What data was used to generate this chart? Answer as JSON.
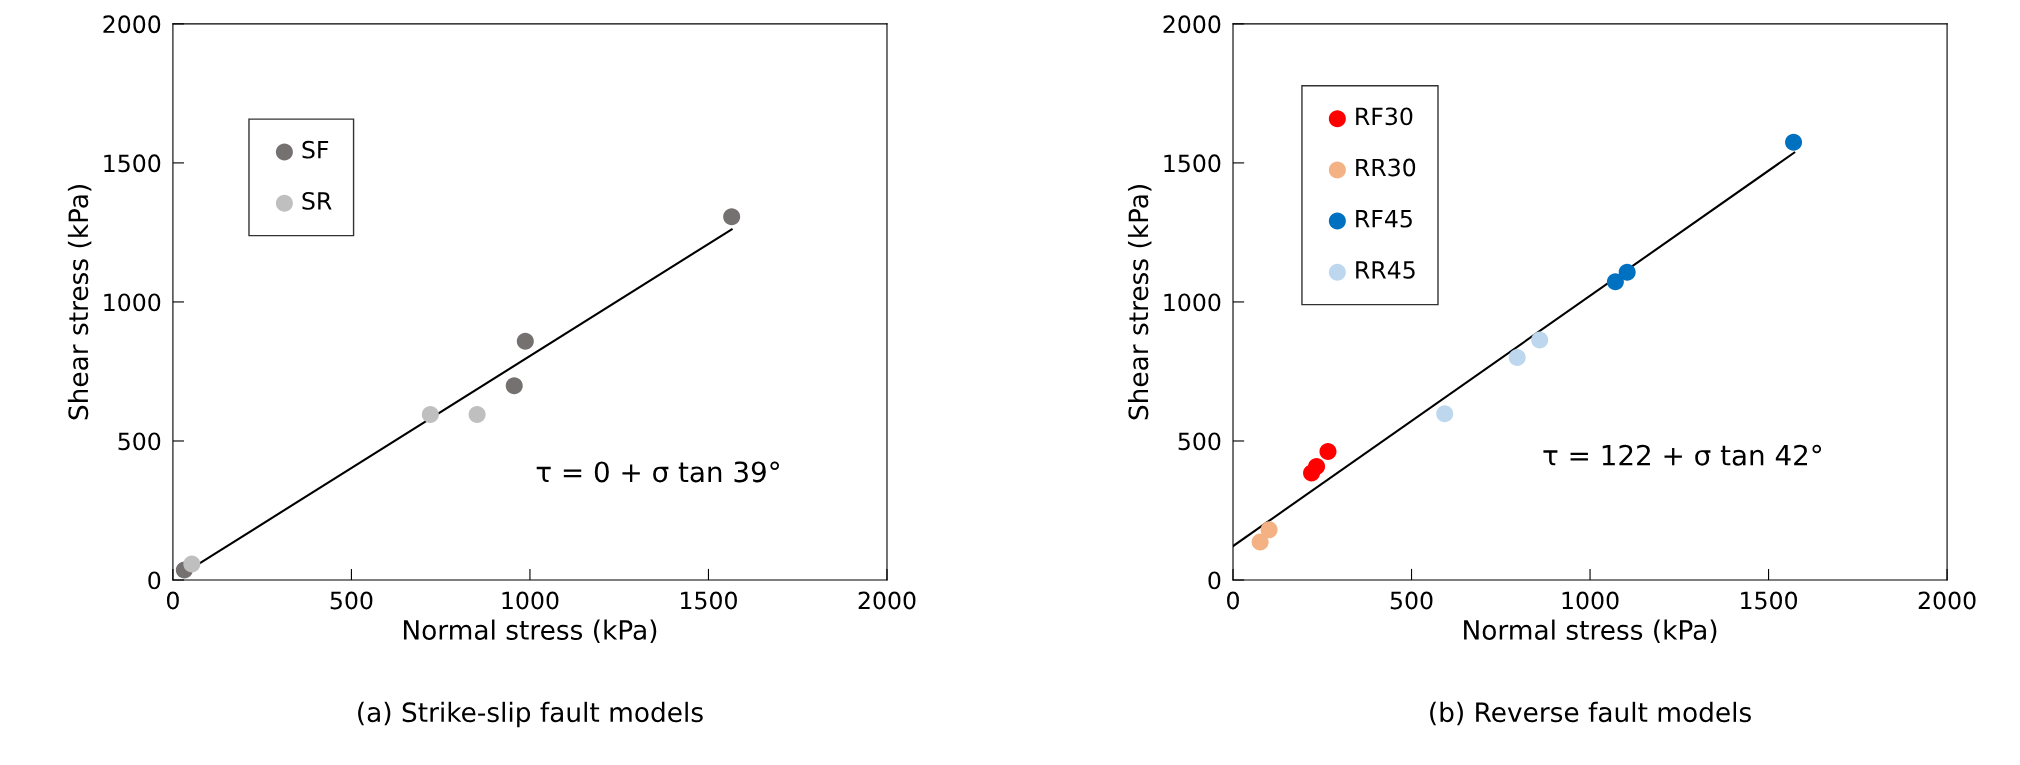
{
  "chart_data": [
    {
      "type": "scatter",
      "title": "(a) Strike-slip fault models",
      "xlabel": "Normal stress (kPa)",
      "ylabel": "Shear stress (kPa)",
      "xlim": [
        0,
        2000
      ],
      "ylim": [
        0,
        2000
      ],
      "xticks": [
        0,
        500,
        1000,
        1500,
        2000
      ],
      "yticks": [
        0,
        500,
        1000,
        1500,
        2000
      ],
      "grid": false,
      "legend": "top left",
      "marker": "circle",
      "annotations": [
        "τ = 0 + σ tan 39°"
      ],
      "series": [
        {
          "name": "SF",
          "color": "#767171",
          "x": [
            32,
            956,
            987,
            1565
          ],
          "values": [
            36,
            699,
            859,
            1306
          ]
        },
        {
          "name": "SR",
          "color": "#bfbfbf",
          "x": [
            53,
            721,
            852
          ],
          "values": [
            58,
            595,
            595
          ]
        },
        {
          "type": "line",
          "marker": "none",
          "color": "#000000",
          "x": [
            20,
            1565
          ],
          "values": [
            16,
            1261
          ]
        }
      ]
    },
    {
      "type": "scatter",
      "title": "(b) Reverse fault models",
      "xlabel": "Normal stress (kPa)",
      "ylabel": "Shear stress (kPa)",
      "xlim": [
        0,
        2000
      ],
      "ylim": [
        0,
        2000
      ],
      "xticks": [
        0,
        500,
        1000,
        1500,
        2000
      ],
      "yticks": [
        0,
        500,
        1000,
        1500,
        2000
      ],
      "grid": false,
      "legend": "top left",
      "marker": "circle",
      "annotations": [
        "τ = 122 + σ tan 42°"
      ],
      "series": [
        {
          "name": "RF30",
          "color": "#ff0000",
          "x": [
            220,
            234,
            266
          ],
          "values": [
            385,
            408,
            462
          ]
        },
        {
          "name": "RR30",
          "color": "#f4b183",
          "x": [
            76,
            101
          ],
          "values": [
            137,
            181
          ]
        },
        {
          "name": "RF45",
          "color": "#0070c0",
          "x": [
            1071,
            1104,
            1570
          ],
          "values": [
            1073,
            1107,
            1574
          ]
        },
        {
          "name": "RR45",
          "color": "#bdd7ee",
          "x": [
            593,
            796,
            859
          ],
          "values": [
            598,
            800,
            863
          ]
        },
        {
          "type": "line",
          "marker": "none",
          "color": "#000000",
          "x": [
            0,
            1572
          ],
          "values": [
            122,
            1537
          ]
        }
      ]
    }
  ]
}
